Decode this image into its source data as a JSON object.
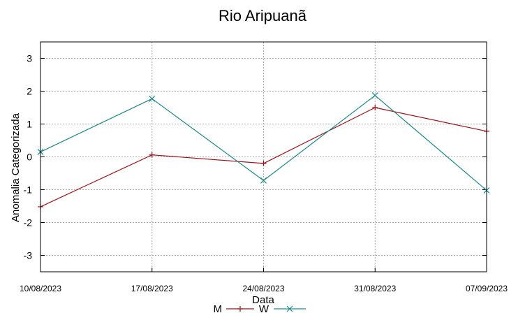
{
  "chart_data": {
    "type": "line",
    "title": "Rio Aripuanã",
    "xlabel": "Data",
    "ylabel": "Anomalia Categorizada",
    "categories": [
      "10/08/2023",
      "17/08/2023",
      "24/08/2023",
      "31/08/2023",
      "07/09/2023"
    ],
    "ylim": [
      -3.5,
      3.5
    ],
    "yticks": [
      3,
      2,
      1,
      0,
      -1,
      -2,
      -3
    ],
    "grid": true,
    "legend_position": "bottom",
    "series": [
      {
        "name": "M",
        "color": "#a50f15",
        "marker": "plus",
        "values": [
          -1.52,
          0.06,
          -0.2,
          1.5,
          0.78
        ]
      },
      {
        "name": "W",
        "color": "#1b8a8a",
        "marker": "cross",
        "values": [
          0.15,
          1.77,
          -0.72,
          1.87,
          -1.02
        ]
      }
    ]
  }
}
